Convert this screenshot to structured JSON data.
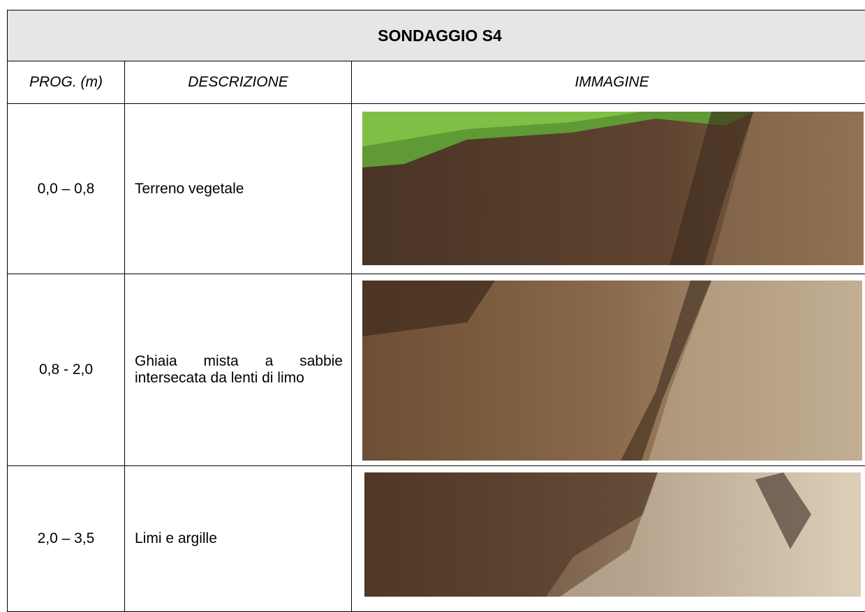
{
  "header": {
    "title": "SONDAGGIO S4"
  },
  "table": {
    "headers": [
      "PROG. (m)",
      "DESCRIZIONE",
      "IMMAGINE"
    ],
    "rows": [
      [
        "0,0 – 0,8",
        "Terreno vegetale"
      ],
      [
        "0,8 - 2,0",
        "Ghiaia mista a sabbie intersecata da lenti di limo"
      ],
      [
        "2,0 – 3,5",
        "Limi e argille"
      ]
    ]
  }
}
